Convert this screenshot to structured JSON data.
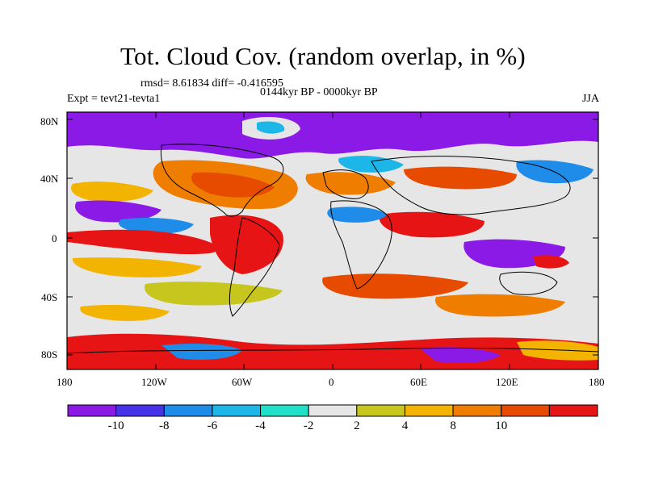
{
  "title": "Tot. Cloud Cov. (random overlap, in %)",
  "stats": "rmsd= 8.61834  diff= -0.416595",
  "period": "0144kyr BP - 0000kyr BP",
  "experiment": "Expt = tevt21-tevta1",
  "season": "JJA",
  "lat_ticks": [
    "80N",
    "40N",
    "0",
    "40S",
    "80S"
  ],
  "lon_ticks": [
    "180",
    "120W",
    "60W",
    "0",
    "60E",
    "120E",
    "180"
  ],
  "colorbar": {
    "colors": [
      "#8b1ae6",
      "#4632e8",
      "#1e8ce8",
      "#1cb7e8",
      "#21e0c8",
      "#e6e6e6",
      "#c6c61e",
      "#f2b400",
      "#ee7d00",
      "#e64b00",
      "#e61414"
    ],
    "labels": [
      "-10",
      "-8",
      "-6",
      "-4",
      "-2",
      "2",
      "4",
      "8",
      "10"
    ]
  },
  "colors": {
    "background": "#ffffff",
    "frame": "#000000"
  }
}
